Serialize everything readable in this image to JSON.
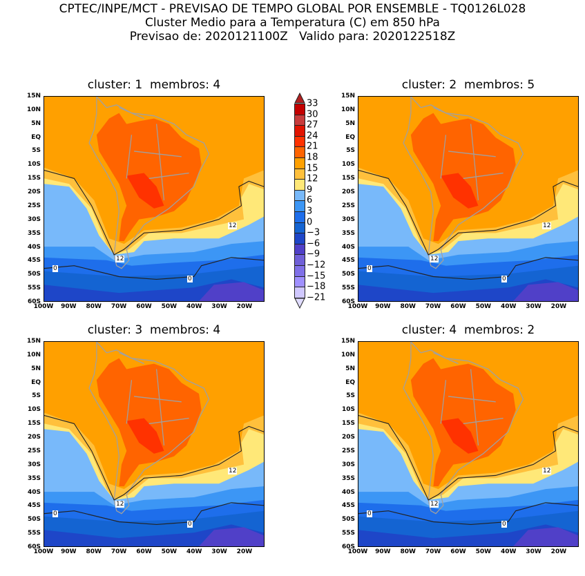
{
  "header": {
    "line1": "CPTEC/INPE/MCT - PREVISAO DE TEMPO GLOBAL POR ENSEMBLE - TQ0126L028",
    "line2": "Cluster Medio para a Temperatura (C) em 850 hPa",
    "line3": "Previsao de: 2020121100Z   Valido para: 2020122518Z"
  },
  "panels": [
    {
      "title": "cluster: 1  membros: 4",
      "contours": [
        "12",
        "12",
        "0",
        "0"
      ]
    },
    {
      "title": "cluster: 2  membros: 5",
      "contours": [
        "12",
        "12",
        "0",
        "0"
      ]
    },
    {
      "title": "cluster: 3  membros: 4",
      "contours": [
        "12",
        "12",
        "0",
        "0"
      ]
    },
    {
      "title": "cluster: 4  membros: 2",
      "contours": [
        "12",
        "12",
        "0",
        "0"
      ]
    }
  ],
  "lat_labels": [
    "15N",
    "10N",
    "5N",
    "EQ",
    "5S",
    "10S",
    "15S",
    "20S",
    "25S",
    "30S",
    "35S",
    "40S",
    "45S",
    "50S",
    "55S",
    "60S"
  ],
  "lon_labels": [
    "100W",
    "90W",
    "80W",
    "70W",
    "60W",
    "50W",
    "40W",
    "30W",
    "20W"
  ],
  "colorbar": {
    "labels": [
      "33",
      "30",
      "27",
      "24",
      "21",
      "18",
      "15",
      "12",
      "9",
      "6",
      "3",
      "0",
      "−3",
      "−6",
      "−9",
      "−12",
      "−15",
      "−18",
      "−21"
    ],
    "colors": [
      "#c40000",
      "#c83c3c",
      "#e11400",
      "#ff3200",
      "#ff6400",
      "#ffa000",
      "#ffc03c",
      "#ffe878",
      "#78b9fa",
      "#3c96f5",
      "#1e6eeb",
      "#1464d2",
      "#1e46c8",
      "#5040c8",
      "#7060d8",
      "#8070e8",
      "#a090ff",
      "#d0c8ff"
    ],
    "top_arrow_color": "#b02020",
    "bottom_arrow_color": "#e0dcff"
  }
}
